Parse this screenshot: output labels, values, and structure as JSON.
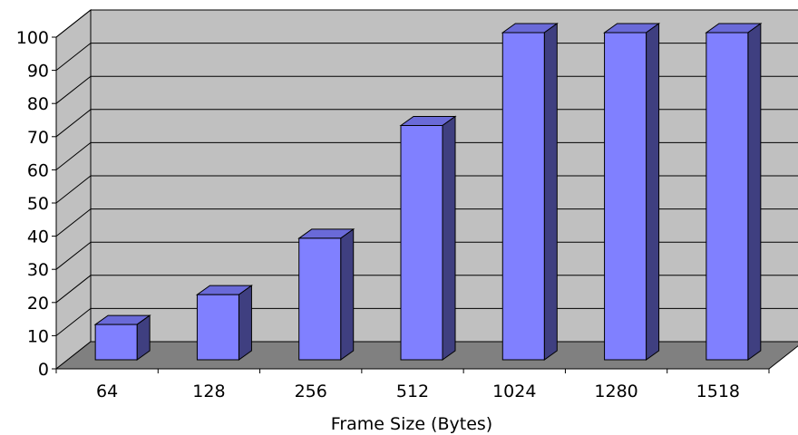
{
  "chart_data": {
    "type": "bar",
    "categories": [
      "64",
      "128",
      "256",
      "512",
      "1024",
      "1280",
      "1518"
    ],
    "values": [
      12,
      21,
      38,
      72,
      100,
      100,
      100
    ],
    "xlabel": "Frame Size (Bytes)",
    "ylabel": "",
    "ylim": [
      0,
      100
    ],
    "yticks": [
      0,
      10,
      20,
      30,
      40,
      50,
      60,
      70,
      80,
      90,
      100
    ],
    "grid": true,
    "legend": "none",
    "style": "3d-column",
    "colors": {
      "bar_front": "#8080ff",
      "bar_top": "#6a6ad8",
      "bar_side": "#3f3f80",
      "wall": "#c0c0c0",
      "floor": "#808080",
      "gridline": "#000000"
    }
  }
}
